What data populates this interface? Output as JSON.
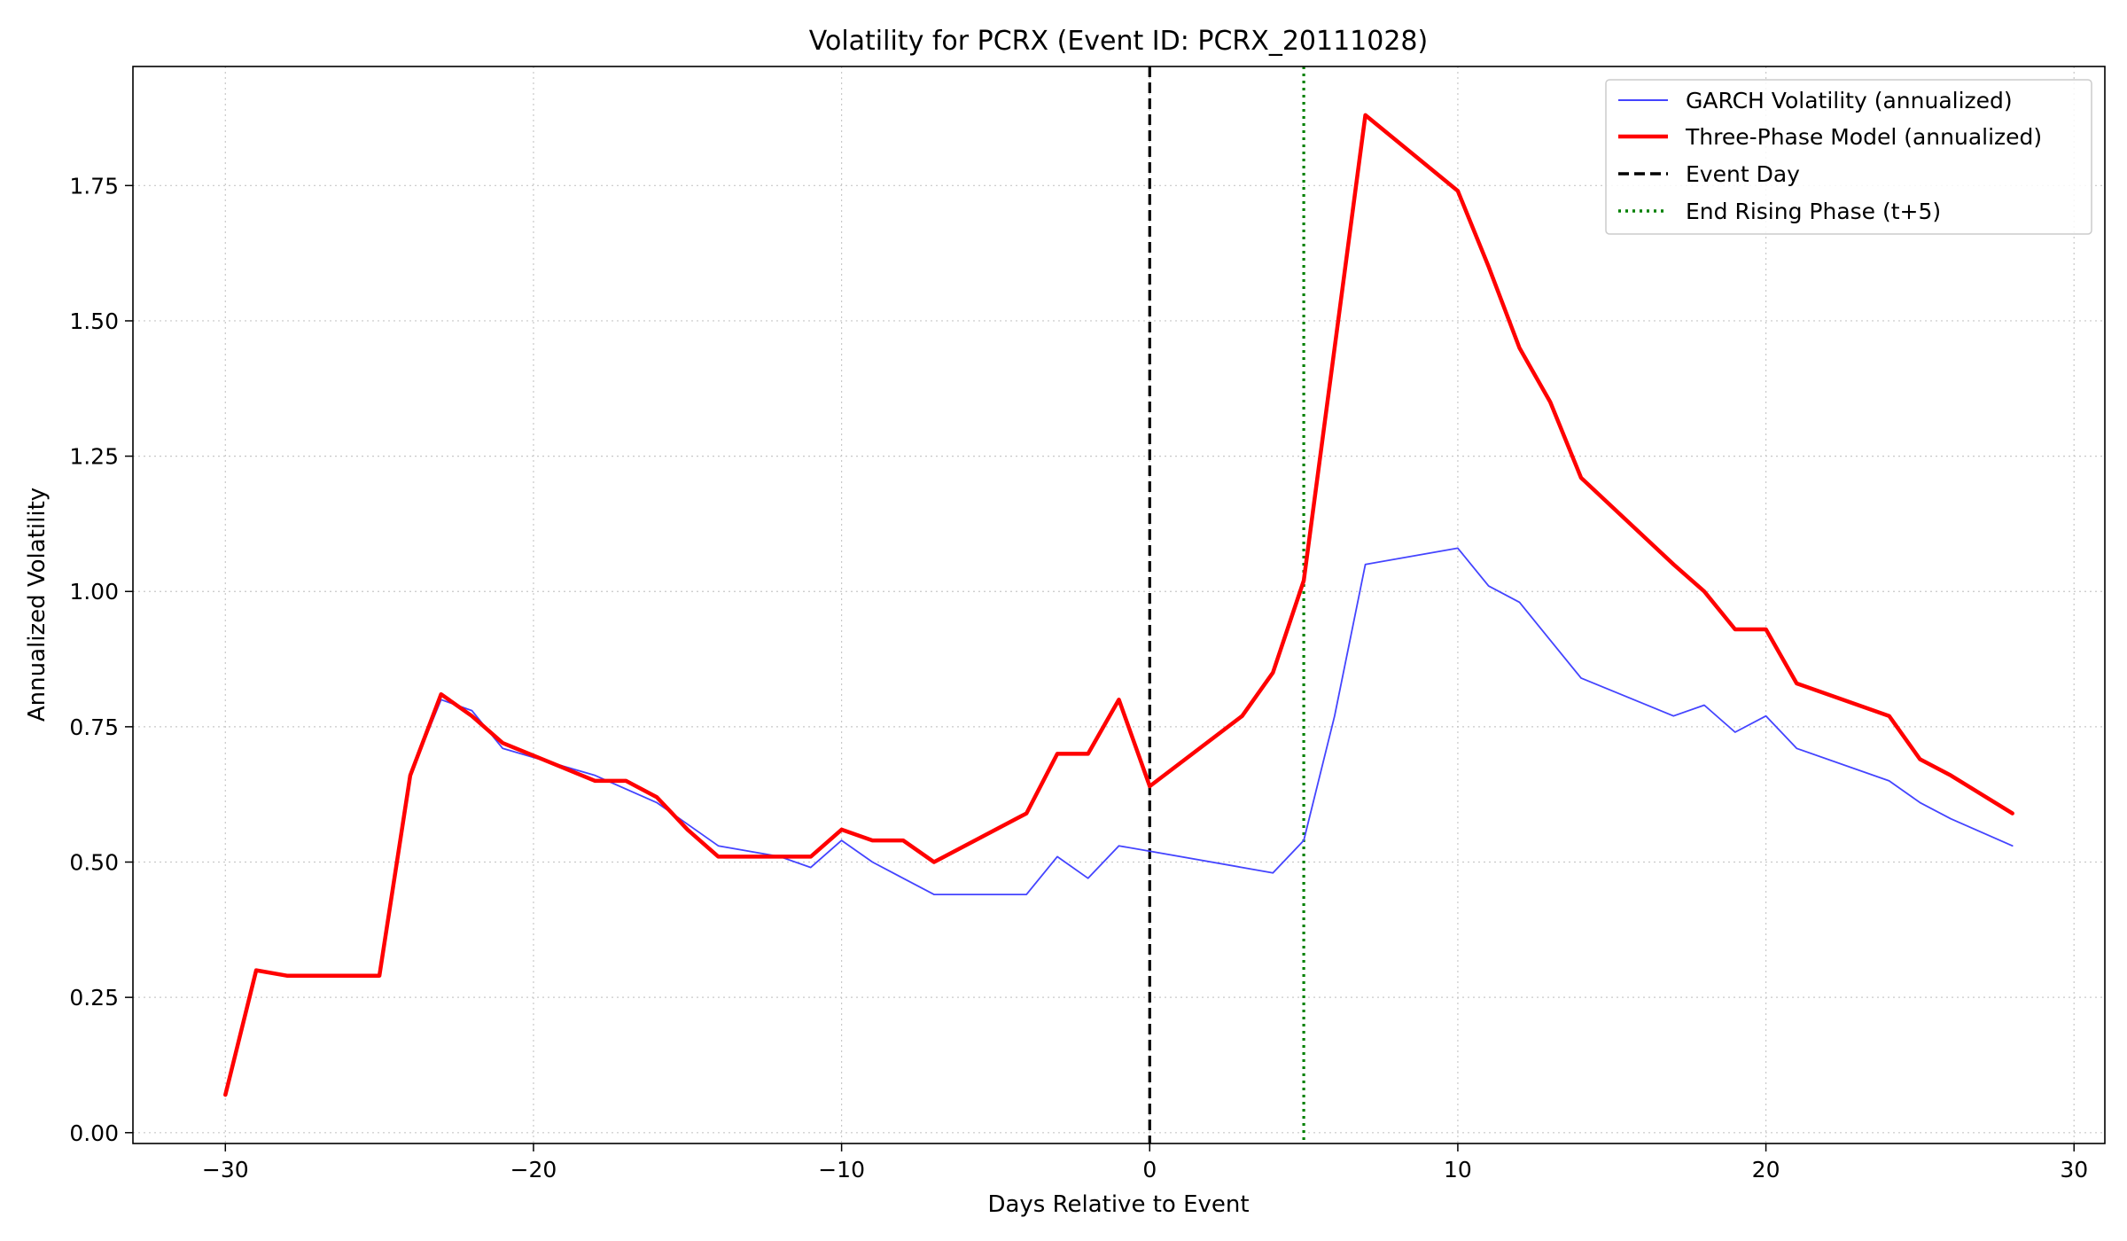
{
  "chart_data": {
    "type": "line",
    "title": "Volatility for PCRX (Event ID: PCRX_20111028)",
    "xlabel": "Days Relative to Event",
    "ylabel": "Annualized Volatility",
    "xlim": [
      -33,
      31
    ],
    "ylim": [
      -0.02,
      1.97
    ],
    "xticks": [
      -30,
      -20,
      -10,
      0,
      10,
      20,
      30
    ],
    "xtick_labels": [
      "−30",
      "−20",
      "−10",
      "0",
      "10",
      "20",
      "30"
    ],
    "yticks": [
      0.0,
      0.25,
      0.5,
      0.75,
      1.0,
      1.25,
      1.5,
      1.75
    ],
    "ytick_labels": [
      "0.00",
      "0.25",
      "0.50",
      "0.75",
      "1.00",
      "1.25",
      "1.50",
      "1.75"
    ],
    "grid": true,
    "legend_position": "top-right",
    "series": [
      {
        "name": "GARCH Volatility (annualized)",
        "color": "#4444ff",
        "style": "solid",
        "x": [
          -30,
          -29,
          -28,
          -25,
          -24,
          -23,
          -22,
          -21,
          -18,
          -16,
          -15,
          -14,
          -12,
          -11,
          -10,
          -9,
          -8,
          -7,
          -4,
          -3,
          -2,
          -1,
          0,
          3,
          4,
          5,
          6,
          7,
          10,
          11,
          12,
          13,
          14,
          17,
          18,
          19,
          20,
          21,
          24,
          25,
          26,
          28
        ],
        "values": [
          0.07,
          0.3,
          0.29,
          0.29,
          0.66,
          0.8,
          0.78,
          0.71,
          0.66,
          0.61,
          0.57,
          0.53,
          0.51,
          0.49,
          0.54,
          0.5,
          0.47,
          0.44,
          0.44,
          0.51,
          0.47,
          0.53,
          0.52,
          0.49,
          0.48,
          0.54,
          0.77,
          1.05,
          1.08,
          1.01,
          0.98,
          0.91,
          0.84,
          0.77,
          0.79,
          0.74,
          0.77,
          0.71,
          0.65,
          0.61,
          0.58,
          0.53
        ]
      },
      {
        "name": "Three-Phase Model (annualized)",
        "color": "#ff0000",
        "style": "solid",
        "x": [
          -30,
          -29,
          -28,
          -25,
          -24,
          -23,
          -22,
          -21,
          -18,
          -17,
          -16,
          -15,
          -14,
          -11,
          -10,
          -9,
          -8,
          -7,
          -4,
          -3,
          -2,
          -1,
          0,
          3,
          4,
          5,
          6,
          7,
          10,
          11,
          12,
          13,
          14,
          17,
          18,
          19,
          20,
          21,
          24,
          25,
          26,
          28
        ],
        "values": [
          0.07,
          0.3,
          0.29,
          0.29,
          0.66,
          0.81,
          0.77,
          0.72,
          0.65,
          0.65,
          0.62,
          0.56,
          0.51,
          0.51,
          0.56,
          0.54,
          0.54,
          0.5,
          0.59,
          0.7,
          0.7,
          0.8,
          0.64,
          0.77,
          0.85,
          1.02,
          1.45,
          1.88,
          1.74,
          1.6,
          1.45,
          1.35,
          1.21,
          1.05,
          1.0,
          0.93,
          0.93,
          0.83,
          0.77,
          0.69,
          0.66,
          0.59
        ]
      }
    ],
    "vlines": [
      {
        "name": "Event Day",
        "x": 0,
        "color": "#000000",
        "style": "dashed"
      },
      {
        "name": "End Rising Phase (t+5)",
        "x": 5,
        "color": "#008000",
        "style": "dotted"
      }
    ]
  }
}
